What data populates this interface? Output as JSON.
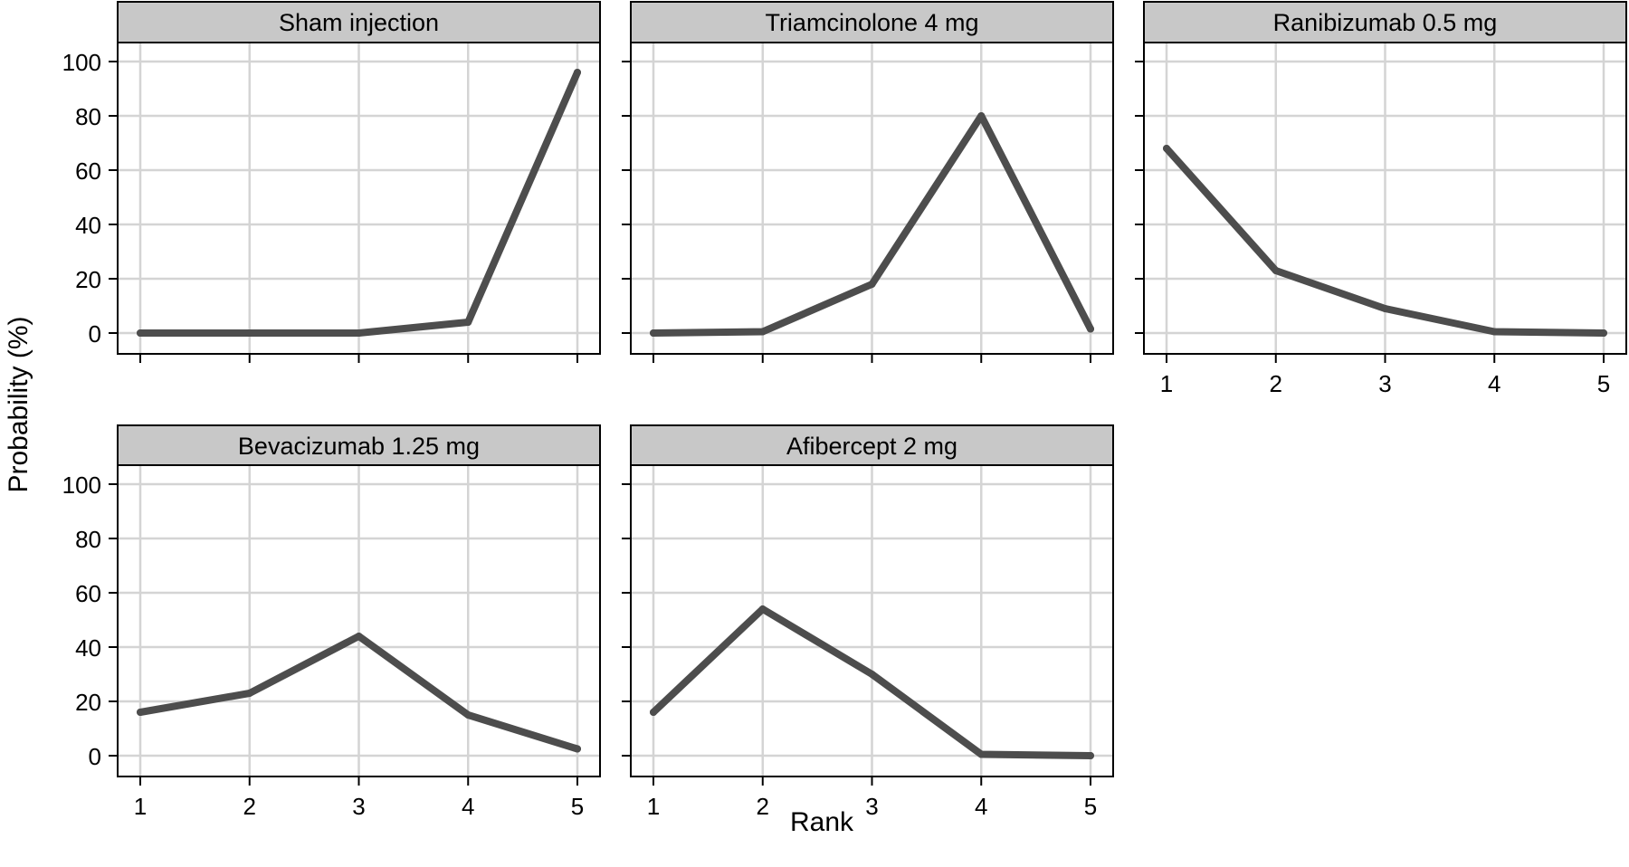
{
  "figure": {
    "ylabel": "Probability (%)",
    "xlabel": "Rank",
    "line_color": "#4d4d4d",
    "grid_color": "#d4d4d4",
    "strip_color": "#c8c8c8"
  },
  "chart_data": [
    {
      "type": "line",
      "title": "Sham injection",
      "categories": [
        "1",
        "2",
        "3",
        "4",
        "5"
      ],
      "values": [
        0,
        0,
        0,
        4,
        96
      ],
      "ylim": [
        0,
        100
      ],
      "yticks": [
        "0",
        "20",
        "40",
        "60",
        "80",
        "100"
      ],
      "grid": true
    },
    {
      "type": "line",
      "title": "Triamcinolone 4 mg",
      "categories": [
        "1",
        "2",
        "3",
        "4",
        "5"
      ],
      "values": [
        0,
        0.5,
        18,
        80,
        1.5
      ],
      "ylim": [
        0,
        100
      ],
      "grid": true
    },
    {
      "type": "line",
      "title": "Ranibizumab 0.5 mg",
      "categories": [
        "1",
        "2",
        "3",
        "4",
        "5"
      ],
      "values": [
        68,
        23,
        9,
        0.5,
        0
      ],
      "ylim": [
        0,
        100
      ],
      "xticks": [
        "1",
        "2",
        "3",
        "4",
        "5"
      ],
      "grid": true
    },
    {
      "type": "line",
      "title": "Bevacizumab 1.25 mg",
      "categories": [
        "1",
        "2",
        "3",
        "4",
        "5"
      ],
      "values": [
        16,
        23,
        44,
        15,
        2.5
      ],
      "ylim": [
        0,
        100
      ],
      "yticks": [
        "0",
        "20",
        "40",
        "60",
        "80",
        "100"
      ],
      "xticks": [
        "1",
        "2",
        "3",
        "4",
        "5"
      ],
      "grid": true
    },
    {
      "type": "line",
      "title": "Afibercept 2 mg",
      "categories": [
        "1",
        "2",
        "3",
        "4",
        "5"
      ],
      "values": [
        16,
        54,
        30,
        0.5,
        0
      ],
      "ylim": [
        0,
        100
      ],
      "xticks": [
        "1",
        "2",
        "3",
        "4",
        "5"
      ],
      "grid": true
    }
  ]
}
